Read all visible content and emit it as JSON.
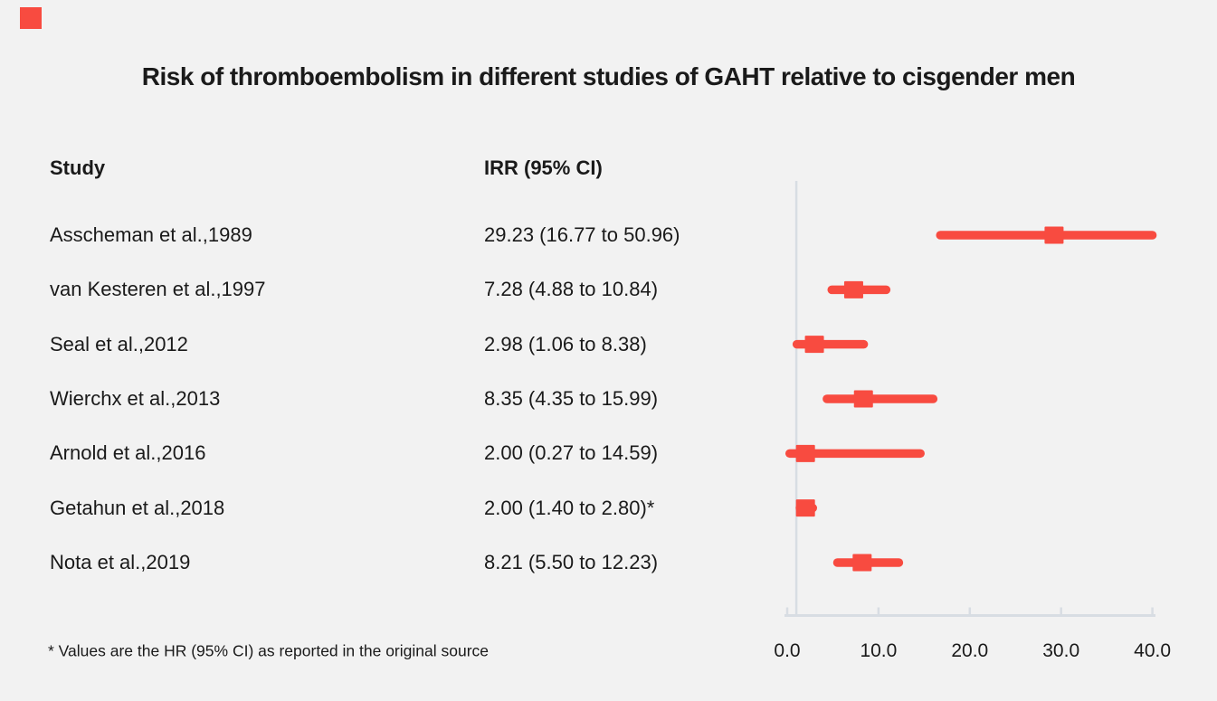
{
  "page": {
    "background_color": "#f2f2f2",
    "text_color": "#1a1a1a",
    "brand_mark_color": "#f84b40"
  },
  "header": {
    "title": "Risk of thromboembolism in different studies of GAHT relative to cisgender men"
  },
  "table": {
    "study_header": "Study",
    "estimate_header": "IRR (95% CI)"
  },
  "footnote": "* Values are the HR (95% CI) as reported in the original source",
  "chart_data": {
    "type": "forest",
    "title": "Risk of thromboembolism in different studies of GAHT relative to cisgender men",
    "xlabel": "",
    "ylabel": "",
    "xlim": [
      0,
      40
    ],
    "reference_line": 1.0,
    "grid": false,
    "legend": "none",
    "marker_color": "#f84b40",
    "axis_color": "#d8dde3",
    "x_ticks": [
      "0.0",
      "10.0",
      "20.0",
      "30.0",
      "40.0"
    ],
    "x_tick_values": [
      0,
      10,
      20,
      30,
      40
    ],
    "studies": [
      {
        "label": "Asscheman et al.,1989",
        "display": "29.23 (16.77 to 50.96)",
        "est": 29.23,
        "lo": 16.77,
        "hi": 50.96
      },
      {
        "label": "van Kesteren et al.,1997",
        "display": "7.28 (4.88 to 10.84)",
        "est": 7.28,
        "lo": 4.88,
        "hi": 10.84
      },
      {
        "label": "Seal et al.,2012",
        "display": "2.98 (1.06 to 8.38)",
        "est": 2.98,
        "lo": 1.06,
        "hi": 8.38
      },
      {
        "label": "Wierchx et al.,2013",
        "display": "8.35 (4.35 to 15.99)",
        "est": 8.35,
        "lo": 4.35,
        "hi": 15.99
      },
      {
        "label": "Arnold et al.,2016",
        "display": "2.00 (0.27 to 14.59)",
        "est": 2.0,
        "lo": 0.27,
        "hi": 14.59
      },
      {
        "label": "Getahun et al.,2018",
        "display": "2.00 (1.40 to 2.80)*",
        "est": 2.0,
        "lo": 1.4,
        "hi": 2.8
      },
      {
        "label": "Nota et al.,2019",
        "display": "8.21 (5.50 to 12.23)",
        "est": 8.21,
        "lo": 5.5,
        "hi": 12.23
      }
    ]
  }
}
